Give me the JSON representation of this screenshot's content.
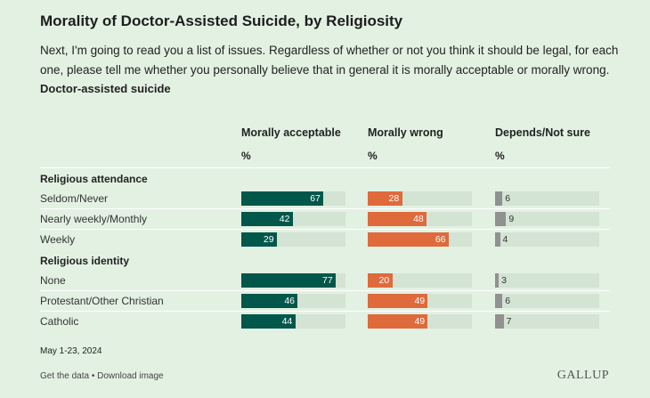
{
  "title": "Morality of Doctor-Assisted Suicide, by Religiosity",
  "subtitle": "Next, I'm going to read you a list of issues. Regardless of whether or not you think it should be legal, for each one, please tell me whether you personally believe that in general it is morally acceptable or morally wrong.",
  "item": "Doctor-assisted suicide",
  "date": "May 1-23, 2024",
  "footer": {
    "get_data": "Get the data",
    "sep": " • ",
    "download": "Download image"
  },
  "logo": "GALLUP",
  "colors": {
    "acceptable": "#02574b",
    "wrong": "#df6a3c",
    "depends": "#919191",
    "track": "#d3e3d4",
    "background": "#e3f1e3"
  },
  "chart_data": {
    "type": "bar",
    "orientation": "horizontal",
    "unit": "%",
    "columns": [
      {
        "name": "Morally acceptable",
        "unit": "%"
      },
      {
        "name": "Morally wrong",
        "unit": "%"
      },
      {
        "name": "Depends/Not sure",
        "unit": "%"
      }
    ],
    "groups": [
      {
        "name": "Religious attendance",
        "rows": [
          {
            "label": "Seldom/Never",
            "values": [
              67,
              28,
              6
            ]
          },
          {
            "label": "Nearly weekly/Monthly",
            "values": [
              42,
              48,
              9
            ]
          },
          {
            "label": "Weekly",
            "values": [
              29,
              66,
              4
            ]
          }
        ]
      },
      {
        "name": "Religious identity",
        "rows": [
          {
            "label": "None",
            "values": [
              77,
              20,
              3
            ]
          },
          {
            "label": "Protestant/Other Christian",
            "values": [
              46,
              49,
              6
            ]
          },
          {
            "label": "Catholic",
            "values": [
              44,
              49,
              7
            ]
          }
        ]
      }
    ]
  }
}
